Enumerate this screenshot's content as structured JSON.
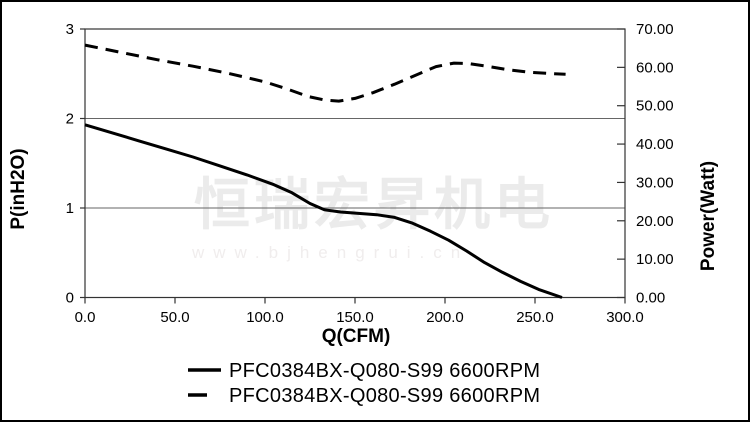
{
  "watermark": {
    "company": "恒瑞宏昇机电",
    "url": "www.bjhengrui.cn"
  },
  "colors": {
    "curve": "#000000",
    "frame": "#333333",
    "grid": "#666666",
    "watermark_text": "#ebebeb",
    "background": "#ffffff",
    "outer_border": "#000000"
  },
  "chart_data": {
    "type": "line",
    "title": "",
    "xlabel": "Q(CFM)",
    "ylabel_left": "P(inH2O)",
    "ylabel_right": "Power(Watt)",
    "xlim": [
      0,
      300
    ],
    "ylim_left": [
      0,
      3
    ],
    "ylim_right": [
      0,
      70
    ],
    "grid": "horizontal-at-left-values",
    "gridline_left_values": [
      1,
      2
    ],
    "x_tick_values": [
      0,
      50,
      100,
      150,
      200,
      250,
      300
    ],
    "x_tick_labels": [
      "0.0",
      "50.0",
      "100.0",
      "150.0",
      "200.0",
      "250.0",
      "300.0"
    ],
    "y_left_tick_values": [
      0,
      1,
      2,
      3
    ],
    "y_left_tick_labels": [
      "0",
      "1",
      "2",
      "3"
    ],
    "y_right_tick_values": [
      0,
      10,
      20,
      30,
      40,
      50,
      60,
      70
    ],
    "y_right_tick_labels": [
      "0.00",
      "10.00",
      "20.00",
      "30.00",
      "40.00",
      "50.00",
      "60.00",
      "70.00"
    ],
    "legend_position": "bottom",
    "series": [
      {
        "name": "PFC0384BX-Q080-S99 6600RPM",
        "style": "solid",
        "axis": "left",
        "units": "inH2O",
        "points": [
          [
            0,
            1.93
          ],
          [
            15,
            1.84
          ],
          [
            30,
            1.75
          ],
          [
            45,
            1.66
          ],
          [
            60,
            1.57
          ],
          [
            75,
            1.47
          ],
          [
            90,
            1.37
          ],
          [
            105,
            1.26
          ],
          [
            115,
            1.17
          ],
          [
            125,
            1.05
          ],
          [
            133,
            0.98
          ],
          [
            142,
            0.955
          ],
          [
            152,
            0.94
          ],
          [
            162,
            0.925
          ],
          [
            172,
            0.895
          ],
          [
            182,
            0.83
          ],
          [
            192,
            0.74
          ],
          [
            202,
            0.64
          ],
          [
            212,
            0.52
          ],
          [
            222,
            0.39
          ],
          [
            232,
            0.28
          ],
          [
            242,
            0.18
          ],
          [
            252,
            0.09
          ],
          [
            265,
            0
          ]
        ]
      },
      {
        "name": "PFC0384BX-Q080-S99 6600RPM",
        "style": "dashed",
        "axis": "right",
        "units": "Watt",
        "points": [
          [
            0,
            65.8
          ],
          [
            20,
            63.9
          ],
          [
            40,
            62.0
          ],
          [
            60,
            60.3
          ],
          [
            80,
            58.4
          ],
          [
            100,
            56.2
          ],
          [
            112,
            54.4
          ],
          [
            124,
            52.4
          ],
          [
            133,
            51.5
          ],
          [
            141,
            51.2
          ],
          [
            150,
            51.9
          ],
          [
            160,
            53.4
          ],
          [
            172,
            55.6
          ],
          [
            184,
            58.0
          ],
          [
            195,
            60.2
          ],
          [
            205,
            61.1
          ],
          [
            213,
            61.0
          ],
          [
            223,
            60.3
          ],
          [
            235,
            59.4
          ],
          [
            247,
            58.7
          ],
          [
            258,
            58.4
          ],
          [
            267,
            58.2
          ]
        ]
      }
    ]
  }
}
